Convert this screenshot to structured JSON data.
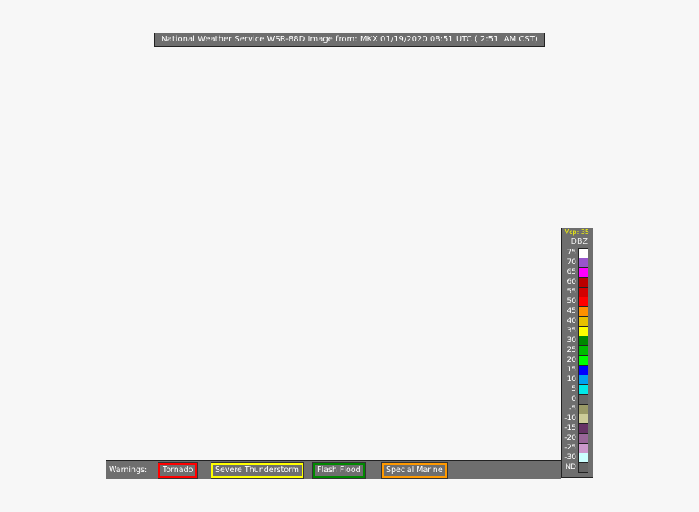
{
  "title": "National Weather Service WSR-88D Image from: MKX 01/19/2020 08:51 UTC ( 2:51  AM CST)",
  "warnings": {
    "label": "Warnings:",
    "items": [
      {
        "label": "Tornado",
        "color": "#ff0000"
      },
      {
        "label": "Severe Thunderstorm",
        "color": "#ffff00"
      },
      {
        "label": "Flash Flood",
        "color": "#008800"
      },
      {
        "label": "Special Marine",
        "color": "#ff9900"
      }
    ]
  },
  "legend": {
    "vcp": "Vcp: 35",
    "unit": "DBZ",
    "rows": [
      {
        "value": "75",
        "color": "#ffffff"
      },
      {
        "value": "70",
        "color": "#9955cc"
      },
      {
        "value": "65",
        "color": "#ff00ff"
      },
      {
        "value": "60",
        "color": "#bb0000"
      },
      {
        "value": "55",
        "color": "#d40000"
      },
      {
        "value": "50",
        "color": "#ff0000"
      },
      {
        "value": "45",
        "color": "#ff9000"
      },
      {
        "value": "40",
        "color": "#e8c000"
      },
      {
        "value": "35",
        "color": "#ffff00"
      },
      {
        "value": "30",
        "color": "#008800"
      },
      {
        "value": "25",
        "color": "#00bb00"
      },
      {
        "value": "20",
        "color": "#00ff00"
      },
      {
        "value": "15",
        "color": "#0000ff"
      },
      {
        "value": "10",
        "color": "#00a0f0"
      },
      {
        "value": "5",
        "color": "#00e8e8"
      },
      {
        "value": "0",
        "color": "#666666"
      },
      {
        "value": "-5",
        "color": "#999966"
      },
      {
        "value": "-10",
        "color": "#cccc99"
      },
      {
        "value": "-15",
        "color": "#663366"
      },
      {
        "value": "-20",
        "color": "#996699"
      },
      {
        "value": "-25",
        "color": "#cc99cc"
      },
      {
        "value": "-30",
        "color": "#ccffff"
      },
      {
        "value": "ND",
        "color": "#666666"
      }
    ]
  }
}
